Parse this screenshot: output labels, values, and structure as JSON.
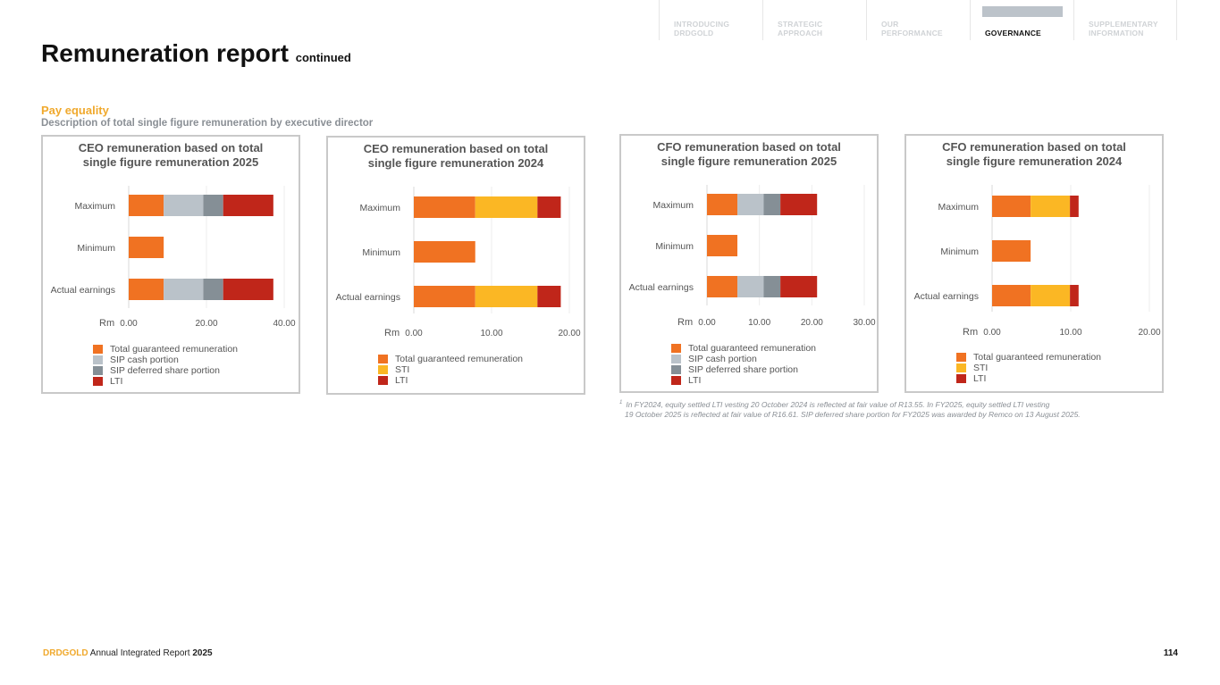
{
  "nav": {
    "items": [
      {
        "line1": "INTRODUCING",
        "line2": "DRDGOLD"
      },
      {
        "line1": "STRATEGIC",
        "line2": "APPROACH"
      },
      {
        "line1": "OUR",
        "line2": "PERFORMANCE"
      },
      {
        "line1": "",
        "line2": "GOVERNANCE"
      },
      {
        "line1": "SUPPLEMENTARY",
        "line2": "INFORMATION"
      }
    ]
  },
  "page": {
    "title": "Remuneration report",
    "title_suffix": "continued",
    "section_title": "Pay equality",
    "section_subtitle": "Description of total single figure remuneration by executive director"
  },
  "colors": {
    "tgr": "#f07222",
    "sip_cash": "#bac2c9",
    "sip_deferred": "#858f96",
    "lti": "#c0261a",
    "sti": "#fbb724"
  },
  "chart_data": [
    {
      "type": "bar",
      "orientation": "horizontal",
      "stacked": true,
      "title": "CEO remuneration based on total single figure remuneration 2025",
      "title_line1": "CEO remuneration based on total",
      "title_line2": "single figure remuneration 2025",
      "categories": [
        "Maximum",
        "Minimum",
        "Actual earnings"
      ],
      "xlabel": "Rm",
      "xlim": [
        0,
        40
      ],
      "xticks": [
        "0.00",
        "20.00",
        "40.00"
      ],
      "series": [
        {
          "name": "Total guaranteed remuneration",
          "color": "#f07222",
          "values": [
            9.0,
            9.0,
            9.0
          ]
        },
        {
          "name": "SIP cash portion",
          "color": "#bac2c9",
          "values": [
            10.2,
            0,
            10.2
          ]
        },
        {
          "name": "SIP deferred share portion",
          "color": "#858f96",
          "values": [
            5.1,
            0,
            5.1
          ]
        },
        {
          "name": "LTI",
          "color": "#c0261a",
          "values": [
            12.9,
            0,
            12.9
          ]
        }
      ]
    },
    {
      "type": "bar",
      "orientation": "horizontal",
      "stacked": true,
      "title": "CEO remuneration based on total single figure remuneration 2024",
      "title_line1": "CEO remuneration based on total",
      "title_line2": "single figure remuneration 2024",
      "categories": [
        "Maximum",
        "Minimum",
        "Actual earnings"
      ],
      "xlabel": "Rm",
      "xlim": [
        0,
        20
      ],
      "xticks": [
        "0.00",
        "10.00",
        "20.00"
      ],
      "series": [
        {
          "name": "Total guaranteed remuneration",
          "color": "#f07222",
          "values": [
            7.9,
            7.9,
            7.9
          ]
        },
        {
          "name": "STI",
          "color": "#fbb724",
          "values": [
            8.0,
            0,
            8.0
          ]
        },
        {
          "name": "LTI",
          "color": "#c0261a",
          "values": [
            3.0,
            0,
            3.0
          ]
        }
      ]
    },
    {
      "type": "bar",
      "orientation": "horizontal",
      "stacked": true,
      "title": "CFO remuneration based on total single figure remuneration 2025",
      "title_line1": "CFO remuneration based on total",
      "title_line2": "single figure remuneration 2025",
      "categories": [
        "Maximum",
        "Minimum",
        "Actual earnings"
      ],
      "xlabel": "Rm",
      "xlim": [
        0,
        30
      ],
      "xticks": [
        "0.00",
        "10.00",
        "20.00",
        "30.00"
      ],
      "series": [
        {
          "name": "Total guaranteed remuneration",
          "color": "#f07222",
          "values": [
            5.8,
            5.8,
            5.8
          ]
        },
        {
          "name": "SIP cash portion",
          "color": "#bac2c9",
          "values": [
            5.0,
            0,
            5.0
          ]
        },
        {
          "name": "SIP deferred share portion",
          "color": "#858f96",
          "values": [
            3.2,
            0,
            3.2
          ]
        },
        {
          "name": "LTI",
          "color": "#c0261a",
          "values": [
            7.0,
            0,
            7.0
          ]
        }
      ]
    },
    {
      "type": "bar",
      "orientation": "horizontal",
      "stacked": true,
      "title": "CFO remuneration based on total single figure remuneration 2024",
      "title_line1": "CFO remuneration based on total",
      "title_line2": "single figure remuneration 2024",
      "categories": [
        "Maximum",
        "Minimum",
        "Actual earnings"
      ],
      "xlabel": "Rm",
      "xlim": [
        0,
        20
      ],
      "xticks": [
        "0.00",
        "10.00",
        "20.00"
      ],
      "series": [
        {
          "name": "Total guaranteed remuneration",
          "color": "#f07222",
          "values": [
            4.9,
            4.9,
            4.9
          ]
        },
        {
          "name": "STI",
          "color": "#fbb724",
          "values": [
            5.0,
            0,
            5.0
          ]
        },
        {
          "name": "LTI",
          "color": "#c0261a",
          "values": [
            1.1,
            0,
            1.1
          ]
        }
      ]
    }
  ],
  "footnote": {
    "marker": "1",
    "line1": "In FY2024, equity settled LTI vesting 20 October 2024 is reflected at fair value of R13.55. In FY2025, equity settled LTI vesting",
    "line2": "19 October 2025 is reflected at fair value of R16.61. SIP deferred share portion for FY2025 was awarded by Remco on 13 August 2025."
  },
  "footer": {
    "brand": "DRDGOLD",
    "report": "Annual Integrated Report",
    "year": "2025",
    "page_number": "114"
  }
}
